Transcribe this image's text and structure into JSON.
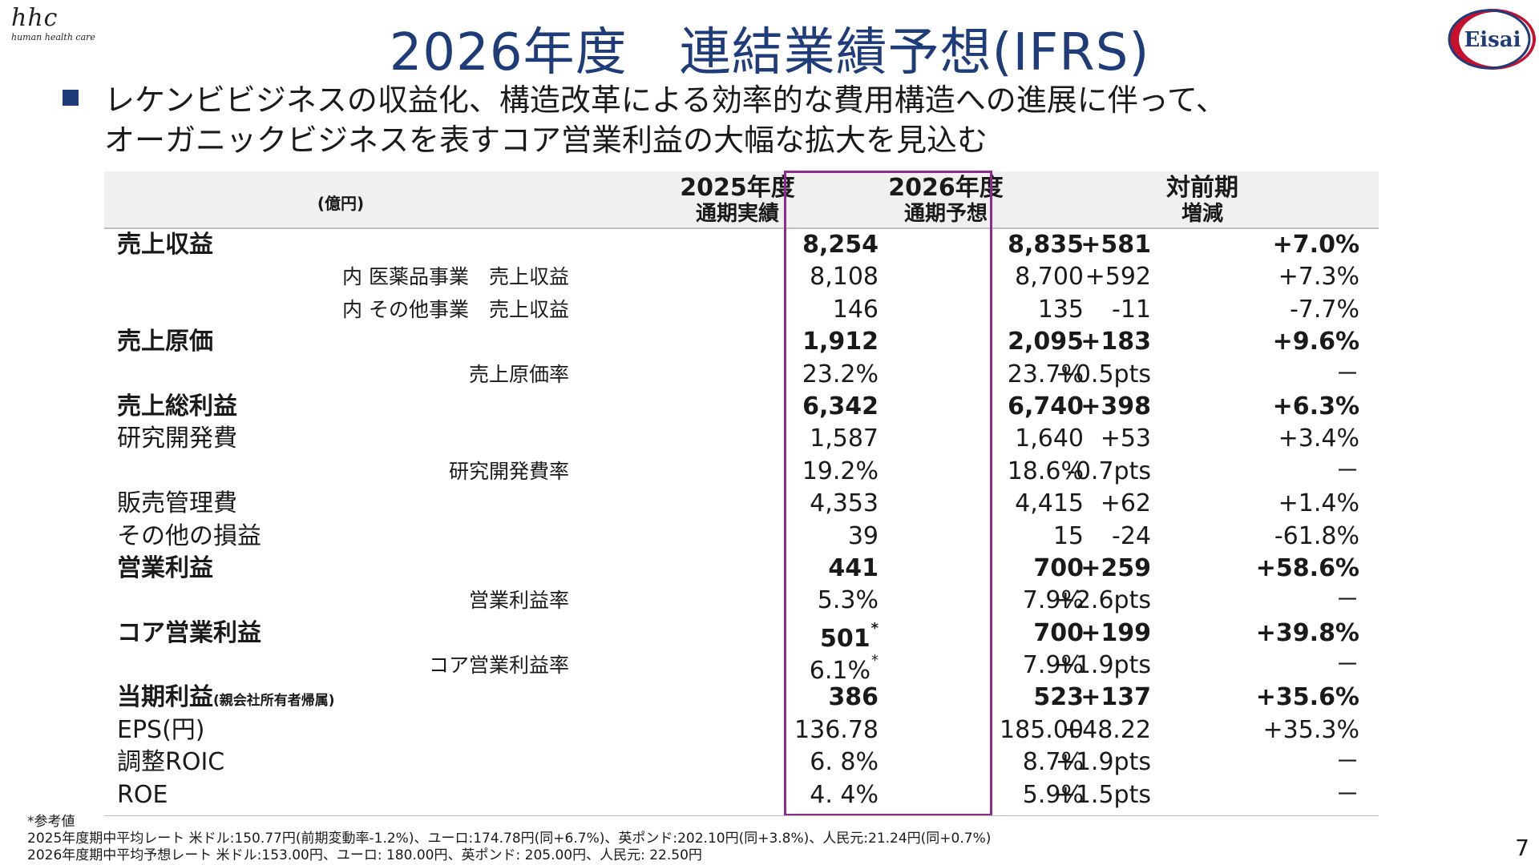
{
  "header": {
    "logo_mark": "hhc",
    "logo_sub": "human health care",
    "title": "2026年度　連結業績予想(IFRS)",
    "brand_logo_text": "Eisai",
    "brand_logo_color": "#c8102e"
  },
  "lead": {
    "bullet_icon": "square-bullet-icon",
    "line1": "レケンビビジネスの収益化、構造改革による効率的な費用構造への進展に伴って、",
    "line2": "オーガニックビジネスを表すコア営業利益の大幅な拡大を見込む"
  },
  "table": {
    "unit": "(億円)",
    "col_2025_l1": "2025年度",
    "col_2025_l2": "通期実績",
    "col_2026_l1": "2026年度",
    "col_2026_l2": "通期予想",
    "col_yoy_l1": "対前期",
    "col_yoy_l2": "増減",
    "highlight_color": "#8e2c8c",
    "rows": [
      {
        "label": "売上収益",
        "v2025": "8,254",
        "v2026": "8,835",
        "diff": "+581",
        "pct": "+7.0%"
      },
      {
        "label": "内 医薬品事業　売上収益",
        "v2025": "8,108",
        "v2026": "8,700",
        "diff": "+592",
        "pct": "+7.3%"
      },
      {
        "label": "内 その他事業　売上収益",
        "v2025": "146",
        "v2026": "135",
        "diff": "-11",
        "pct": "-7.7%"
      },
      {
        "label": "売上原価",
        "v2025": "1,912",
        "v2026": "2,095",
        "diff": "+183",
        "pct": "+9.6%"
      },
      {
        "label": "売上原価率",
        "v2025": "23.2%",
        "v2026": "23.7%",
        "diff": "+0.5pts",
        "pct": "－"
      },
      {
        "label": "売上総利益",
        "v2025": "6,342",
        "v2026": "6,740",
        "diff": "+398",
        "pct": "+6.3%"
      },
      {
        "label": "研究開発費",
        "v2025": "1,587",
        "v2026": "1,640",
        "diff": "+53",
        "pct": "+3.4%"
      },
      {
        "label": "研究開発費率",
        "v2025": "19.2%",
        "v2026": "18.6%",
        "diff": "-0.7pts",
        "pct": "－"
      },
      {
        "label": "販売管理費",
        "v2025": "4,353",
        "v2026": "4,415",
        "diff": "+62",
        "pct": "+1.4%"
      },
      {
        "label": "その他の損益",
        "v2025": "39",
        "v2026": "15",
        "diff": "-24",
        "pct": "-61.8%"
      },
      {
        "label": "営業利益",
        "v2025": "441",
        "v2026": "700",
        "diff": "+259",
        "pct": "+58.6%"
      },
      {
        "label": "営業利益率",
        "v2025": "5.3%",
        "v2026": "7.9%",
        "diff": "+2.6pts",
        "pct": "－"
      },
      {
        "label": "コア営業利益",
        "v2025": "501",
        "v2026": "700",
        "diff": "+199",
        "pct": "+39.8%"
      },
      {
        "label": "コア営業利益率",
        "v2025": "6.1%",
        "v2026": "7.9%",
        "diff": "+1.9pts",
        "pct": "－"
      },
      {
        "label": "当期利益",
        "label_paren": "(親会社所有者帰属)",
        "v2025": "386",
        "v2026": "523",
        "diff": "+137",
        "pct": "+35.6%"
      },
      {
        "label": "EPS(円)",
        "v2025": "136.78",
        "v2026": "185.00",
        "diff": "+48.22",
        "pct": "+35.3%"
      },
      {
        "label": "調整ROIC",
        "v2025": "6. 8%",
        "v2026": "8.7%",
        "diff": "+1.9pts",
        "pct": "－"
      },
      {
        "label": "ROE",
        "v2025": "4. 4%",
        "v2026": "5.9%",
        "diff": "+1.5pts",
        "pct": "－"
      }
    ],
    "asterisk": "*"
  },
  "notes": {
    "title": "*参考値",
    "line1": "2025年度期中平均レート 米ドル:150.77円(前期変動率-1.2%)、ユーロ:174.78円(同+6.7%)、英ポンド:202.10円(同+3.8%)、人民元:21.24円(同+0.7%)",
    "line2": "2026年度期中平均予想レート 米ドル:153.00円、ユーロ: 180.00円、英ポンド: 205.00円、人民元: 22.50円"
  },
  "page_number": "7"
}
